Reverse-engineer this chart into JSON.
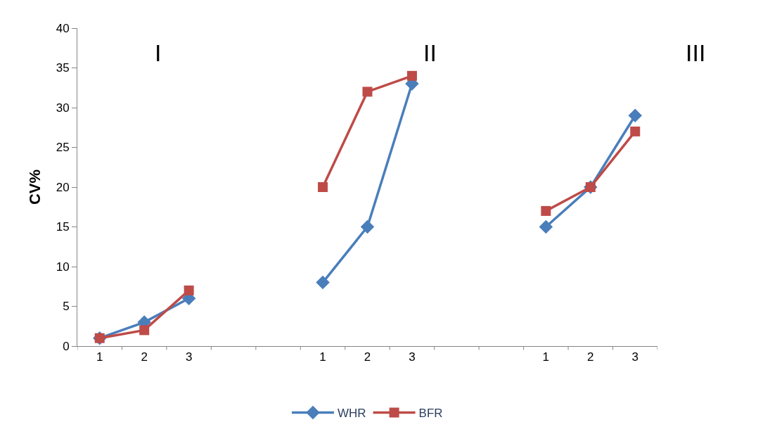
{
  "chart_data": {
    "type": "line",
    "ylabel": "CV%",
    "categories": [
      "1",
      "2",
      "3",
      null,
      null,
      "1",
      "2",
      "3",
      null,
      null,
      "1",
      "2",
      "3"
    ],
    "series": [
      {
        "name": "WHR",
        "color": "#4a7ebb",
        "marker": "diamond",
        "values": [
          1,
          3,
          6,
          null,
          null,
          8,
          15,
          33,
          null,
          null,
          15,
          20,
          29
        ]
      },
      {
        "name": "BFR",
        "color": "#be4b48",
        "marker": "square",
        "values": [
          1,
          2,
          7,
          null,
          null,
          20,
          32,
          34,
          null,
          null,
          17,
          20,
          27
        ]
      }
    ],
    "annotations": [
      "I",
      "II",
      "III"
    ],
    "ylim": [
      0,
      40
    ],
    "yticks": [
      0,
      5,
      10,
      15,
      20,
      25,
      30,
      35,
      40
    ],
    "legend": "bottom",
    "line_style": "solid"
  }
}
